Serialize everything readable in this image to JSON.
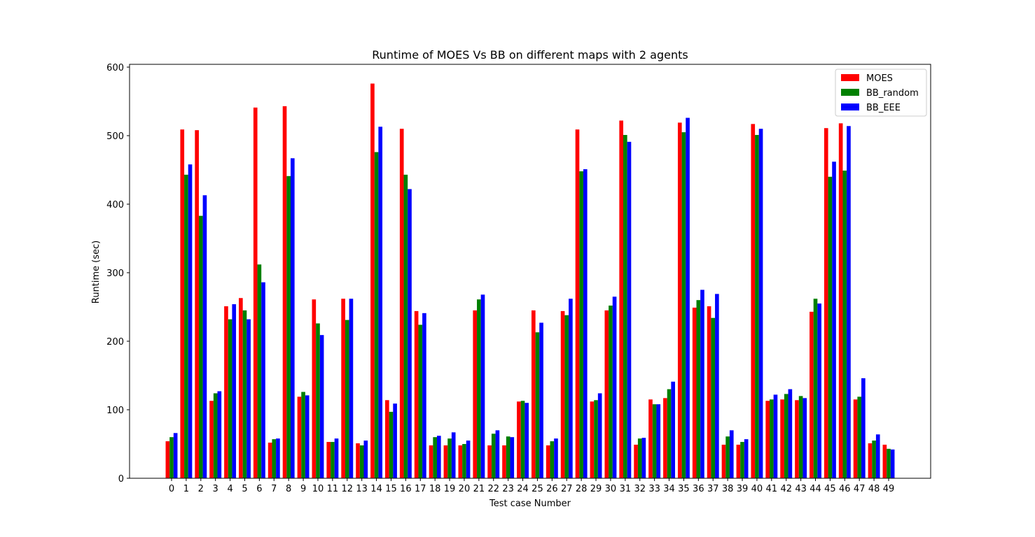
{
  "chart_data": {
    "type": "bar",
    "title": "Runtime of MOES Vs BB on different maps with 2 agents",
    "xlabel": "Test case Number",
    "ylabel": "Runtime (sec)",
    "ylim": [
      0,
      600
    ],
    "yticks": [
      0,
      100,
      200,
      300,
      400,
      500,
      600
    ],
    "legend_position": "top-right",
    "grid": false,
    "categories": [
      "0",
      "1",
      "2",
      "3",
      "4",
      "5",
      "6",
      "7",
      "8",
      "9",
      "10",
      "11",
      "12",
      "13",
      "14",
      "15",
      "16",
      "17",
      "18",
      "19",
      "20",
      "21",
      "22",
      "23",
      "24",
      "25",
      "26",
      "27",
      "28",
      "29",
      "30",
      "31",
      "32",
      "33",
      "34",
      "35",
      "36",
      "37",
      "38",
      "39",
      "40",
      "41",
      "42",
      "43",
      "44",
      "45",
      "46",
      "47",
      "48",
      "49"
    ],
    "series": [
      {
        "name": "MOES",
        "color": "#ff0000",
        "values": [
          54,
          509,
          508,
          113,
          251,
          263,
          541,
          52,
          543,
          119,
          261,
          53,
          262,
          51,
          576,
          114,
          510,
          244,
          48,
          48,
          48,
          245,
          48,
          48,
          112,
          245,
          48,
          244,
          509,
          112,
          245,
          522,
          49,
          115,
          117,
          519,
          249,
          251,
          49,
          49,
          517,
          113,
          115,
          114,
          243,
          511,
          518,
          115,
          51,
          49
        ]
      },
      {
        "name": "BB_random",
        "color": "#008000",
        "values": [
          60,
          443,
          383,
          124,
          232,
          245,
          312,
          57,
          441,
          126,
          226,
          53,
          231,
          48,
          476,
          97,
          443,
          224,
          60,
          58,
          50,
          261,
          65,
          61,
          113,
          213,
          54,
          238,
          448,
          114,
          252,
          501,
          58,
          108,
          130,
          505,
          260,
          234,
          61,
          53,
          501,
          115,
          123,
          120,
          262,
          440,
          449,
          119,
          55,
          43
        ]
      },
      {
        "name": "BB_EEE",
        "color": "#0000ff",
        "values": [
          66,
          458,
          413,
          127,
          254,
          232,
          286,
          58,
          467,
          121,
          209,
          58,
          262,
          55,
          513,
          109,
          422,
          241,
          62,
          67,
          55,
          268,
          70,
          60,
          110,
          227,
          58,
          262,
          451,
          124,
          265,
          491,
          59,
          108,
          141,
          526,
          275,
          269,
          70,
          57,
          510,
          122,
          130,
          117,
          255,
          462,
          514,
          146,
          64,
          42
        ]
      }
    ]
  }
}
